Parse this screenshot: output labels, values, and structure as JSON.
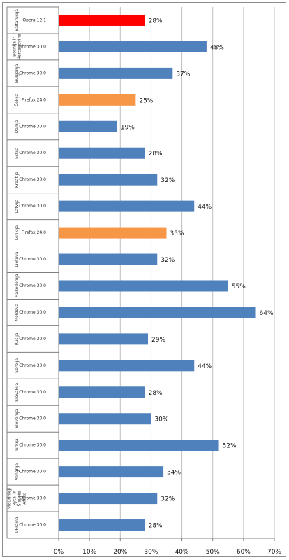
{
  "chart_data": {
    "type": "bar",
    "orientation": "horizontal",
    "categories": [
      "Baltarusija",
      "Bosnija ir Hercegovina",
      "Bulgarija",
      "Čekija",
      "Danija",
      "Estija",
      "Kroatija",
      "Latvija",
      "Lenkija",
      "Lietuva",
      "Makedonija",
      "Moldova",
      "Rusija",
      "Serbija",
      "Slovakija",
      "Slovėnija",
      "Turkija",
      "Vengrija",
      "Vidurinieji Rytai ir Šiaurės Afrika",
      "Ukraina"
    ],
    "category_lines": [
      [
        "Baltarusija"
      ],
      [
        "Bosnija ir",
        "Hercegovina"
      ],
      [
        "Bulgarija"
      ],
      [
        "Čekija"
      ],
      [
        "Danija"
      ],
      [
        "Estija"
      ],
      [
        "Kroatija"
      ],
      [
        "Latvija"
      ],
      [
        "Lenkija"
      ],
      [
        "Lietuva"
      ],
      [
        "Makedonija"
      ],
      [
        "Moldova"
      ],
      [
        "Rusija"
      ],
      [
        "Serbija"
      ],
      [
        "Slovakija"
      ],
      [
        "Slovėnija"
      ],
      [
        "Turkija"
      ],
      [
        "Vengrija"
      ],
      [
        "Vidurinieji",
        "Rytai ir",
        "Šiaurės",
        "Afrika"
      ],
      [
        "Ukraina"
      ]
    ],
    "bar_labels": [
      "Opera 12.1",
      "Chrome 30.0",
      "Chrome 30.0",
      "Firefox 24.0",
      "Chrome 30.0",
      "Chrome 30.0",
      "Chrome 30.0",
      "Chrome 30.0",
      "Firefox 24.0",
      "Chrome 30.0",
      "Chrome 30.0",
      "Chrome 30.0",
      "Chrome 30.0",
      "Chrome 30.0",
      "Chrome 30.0",
      "Chrome 30.0",
      "Chrome 30.0",
      "Chrome 30.0",
      "Chrome 30.0",
      "Chrome 30.0"
    ],
    "values": [
      28,
      48,
      37,
      25,
      19,
      28,
      32,
      44,
      35,
      32,
      55,
      64,
      29,
      44,
      28,
      30,
      52,
      34,
      32,
      28
    ],
    "value_labels": [
      "28%",
      "48%",
      "37%",
      "25%",
      "19%",
      "28%",
      "32%",
      "44%",
      "35%",
      "32%",
      "55%",
      "64%",
      "29%",
      "44%",
      "28%",
      "30%",
      "52%",
      "34%",
      "32%",
      "28%"
    ],
    "xlim": [
      0,
      70
    ],
    "xticks": [
      0,
      10,
      20,
      30,
      40,
      50,
      60,
      70
    ],
    "xtick_labels": [
      "0%",
      "10%",
      "20%",
      "30%",
      "40%",
      "50%",
      "60%",
      "70%"
    ],
    "grid": true,
    "title": "",
    "xlabel": "",
    "ylabel": "",
    "colors": {
      "Opera 12.1": "#ff0000",
      "Chrome 30.0": "#4f81bd",
      "Firefox 24.0": "#f79646"
    }
  }
}
